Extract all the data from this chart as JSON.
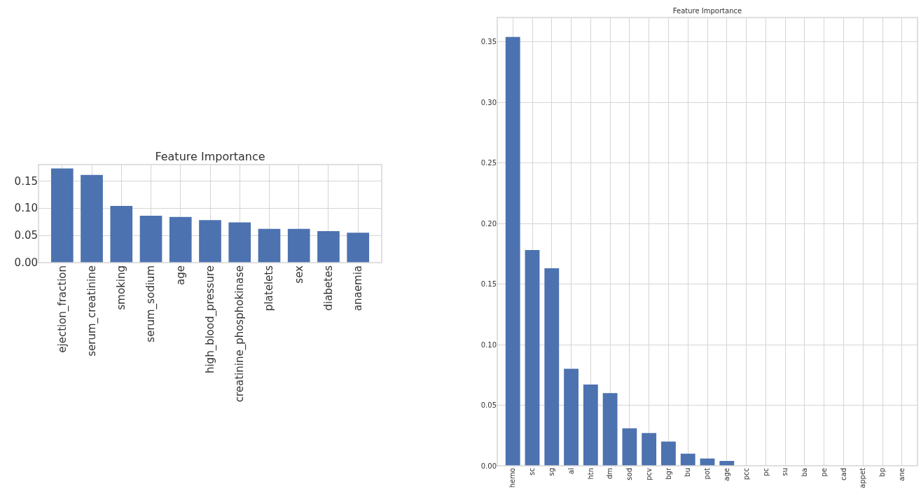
{
  "chart_data": [
    {
      "type": "bar",
      "title": "Feature Importance",
      "categories": [
        "ejection_fraction",
        "serum_creatinine",
        "smoking",
        "serum_sodium",
        "age",
        "high_blood_pressure",
        "creatinine_phosphokinase",
        "platelets",
        "sex",
        "diabetes",
        "anaemia"
      ],
      "values": [
        0.173,
        0.161,
        0.104,
        0.086,
        0.084,
        0.078,
        0.074,
        0.062,
        0.062,
        0.058,
        0.055
      ],
      "color": "#4c72b0",
      "ylim": [
        0,
        0.18
      ],
      "yticks": [
        {
          "value": 0,
          "label": "0.00"
        },
        {
          "value": 0.05,
          "label": "0.05"
        },
        {
          "value": 0.1,
          "label": "0.10"
        },
        {
          "value": 0.15,
          "label": "0.15"
        }
      ],
      "grid": true
    },
    {
      "type": "bar",
      "title": "Feature Importance",
      "categories": [
        "hemo",
        "sc",
        "sg",
        "al",
        "htn",
        "dm",
        "sod",
        "pcv",
        "bgr",
        "bu",
        "pot",
        "age",
        "pcc",
        "pc",
        "su",
        "ba",
        "pe",
        "cad",
        "appet",
        "bp",
        "ane"
      ],
      "values": [
        0.354,
        0.178,
        0.163,
        0.08,
        0.067,
        0.06,
        0.031,
        0.027,
        0.02,
        0.01,
        0.006,
        0.004,
        0,
        0,
        0,
        0,
        0,
        0,
        0,
        0,
        0
      ],
      "color": "#4c72b0",
      "ylim": [
        0,
        0.37
      ],
      "yticks": [
        {
          "value": 0,
          "label": "0.00"
        },
        {
          "value": 0.05,
          "label": "0.05"
        },
        {
          "value": 0.1,
          "label": "0.10"
        },
        {
          "value": 0.15,
          "label": "0.15"
        },
        {
          "value": 0.2,
          "label": "0.20"
        },
        {
          "value": 0.25,
          "label": "0.25"
        },
        {
          "value": 0.3,
          "label": "0.30"
        },
        {
          "value": 0.35,
          "label": "0.35"
        }
      ],
      "grid": true
    }
  ]
}
